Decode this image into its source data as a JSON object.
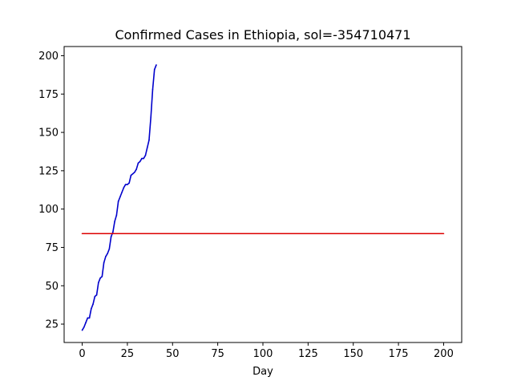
{
  "chart_data": {
    "type": "line",
    "title": "Confirmed Cases in Ethiopia, sol=-354710471",
    "xlabel": "Day",
    "ylabel": "",
    "xlim": [
      -10,
      210
    ],
    "ylim": [
      13,
      206
    ],
    "x_ticks": [
      0,
      25,
      50,
      75,
      100,
      125,
      150,
      175,
      200
    ],
    "y_ticks": [
      25,
      50,
      75,
      100,
      125,
      150,
      175,
      200
    ],
    "grid": false,
    "series": [
      {
        "color": "#0000cc",
        "x": [
          0,
          1,
          2,
          3,
          4,
          5,
          6,
          7,
          8,
          9,
          10,
          11,
          12,
          13,
          14,
          15,
          16,
          17,
          18,
          19,
          20,
          21,
          22,
          23,
          24,
          25,
          26,
          27,
          28,
          29,
          30,
          31,
          32,
          33,
          34,
          35,
          36,
          37,
          38,
          39,
          40,
          41
        ],
        "values": [
          21,
          23,
          26,
          29,
          29,
          35,
          38,
          43,
          44,
          52,
          55,
          56,
          65,
          69,
          71,
          74,
          82,
          85,
          92,
          96,
          105,
          108,
          111,
          114,
          116,
          116,
          117,
          122,
          123,
          124,
          126,
          130,
          131,
          133,
          133,
          135,
          140,
          145,
          160,
          178,
          191,
          194
        ]
      },
      {
        "color": "#dd0000",
        "x": [
          0,
          200
        ],
        "values": [
          84,
          84
        ]
      }
    ]
  }
}
